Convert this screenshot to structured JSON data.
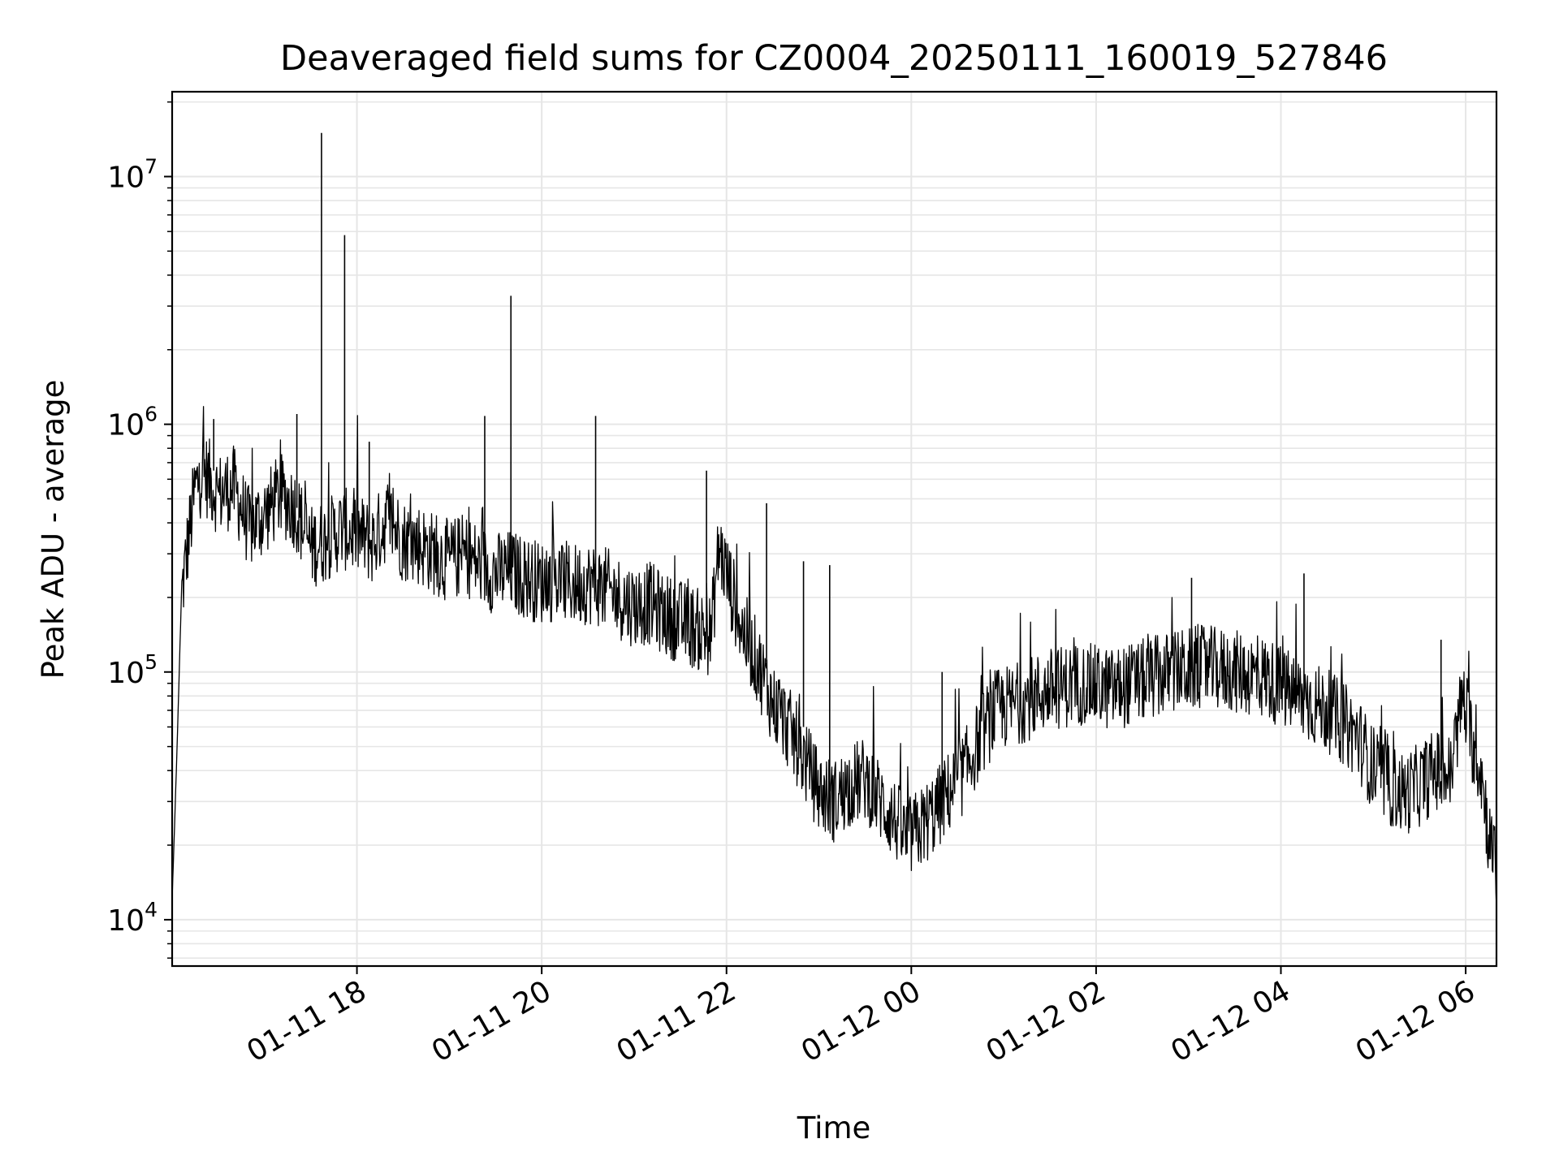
{
  "chart_data": {
    "type": "line",
    "title": "Deaveraged field sums for CZ0004_20250111_160019_527846",
    "xlabel": "Time",
    "ylabel": "Peak ADU - average",
    "yscale": "log",
    "grid": true,
    "legend": "none",
    "line_color": "#000000",
    "grid_color": "#e6e6e6",
    "x_range": [
      "2025-01-11 16:00",
      "2025-01-12 06:20"
    ],
    "ylim": [
      6500,
      22000000
    ],
    "x_ticks": [
      {
        "time": "2025-01-11 18:00",
        "label": "01-11 18"
      },
      {
        "time": "2025-01-11 20:00",
        "label": "01-11 20"
      },
      {
        "time": "2025-01-11 22:00",
        "label": "01-11 22"
      },
      {
        "time": "2025-01-12 00:00",
        "label": "01-12 00"
      },
      {
        "time": "2025-01-12 02:00",
        "label": "01-12 02"
      },
      {
        "time": "2025-01-12 04:00",
        "label": "01-12 04"
      },
      {
        "time": "2025-01-12 06:00",
        "label": "01-12 06"
      }
    ],
    "y_ticks": [
      {
        "value": 10000,
        "base": "10",
        "exp": "4"
      },
      {
        "value": 100000,
        "base": "10",
        "exp": "5"
      },
      {
        "value": 1000000,
        "base": "10",
        "exp": "6"
      },
      {
        "value": 10000000,
        "base": "10",
        "exp": "7"
      }
    ],
    "series": [
      {
        "values": [
          [
            "2025-01-11 16:00",
            12000
          ],
          [
            "2025-01-11 16:03",
            45000
          ],
          [
            "2025-01-11 16:06",
            200000
          ],
          [
            "2025-01-11 16:10",
            320000
          ],
          [
            "2025-01-11 16:15",
            550000
          ],
          [
            "2025-01-11 16:20",
            650000
          ],
          [
            "2025-01-11 16:30",
            520000
          ],
          [
            "2025-01-11 16:40",
            560000
          ],
          [
            "2025-01-11 16:50",
            380000
          ],
          [
            "2025-01-11 17:00",
            430000
          ],
          [
            "2025-01-11 17:10",
            520000
          ],
          [
            "2025-01-11 17:20",
            460000
          ],
          [
            "2025-01-11 17:30",
            320000
          ],
          [
            "2025-01-11 17:40",
            340000
          ],
          [
            "2025-01-11 17:50",
            380000
          ],
          [
            "2025-01-11 18:00",
            360000
          ],
          [
            "2025-01-11 18:10",
            330000
          ],
          [
            "2025-01-11 18:20",
            420000
          ],
          [
            "2025-01-11 18:30",
            340000
          ],
          [
            "2025-01-11 18:40",
            330000
          ],
          [
            "2025-01-11 18:50",
            300000
          ],
          [
            "2025-01-11 19:00",
            280000
          ],
          [
            "2025-01-11 19:10",
            300000
          ],
          [
            "2025-01-11 19:20",
            270000
          ],
          [
            "2025-01-11 19:30",
            250000
          ],
          [
            "2025-01-11 19:40",
            255000
          ],
          [
            "2025-01-11 19:50",
            240000
          ],
          [
            "2025-01-11 20:00",
            230000
          ],
          [
            "2025-01-11 20:10",
            235000
          ],
          [
            "2025-01-11 20:20",
            225000
          ],
          [
            "2025-01-11 20:30",
            230000
          ],
          [
            "2025-01-11 20:40",
            220000
          ],
          [
            "2025-01-11 20:50",
            200000
          ],
          [
            "2025-01-11 21:00",
            185000
          ],
          [
            "2025-01-11 21:10",
            190000
          ],
          [
            "2025-01-11 21:20",
            170000
          ],
          [
            "2025-01-11 21:30",
            160000
          ],
          [
            "2025-01-11 21:40",
            150000
          ],
          [
            "2025-01-11 21:50",
            140000
          ],
          [
            "2025-01-11 21:55",
            320000
          ],
          [
            "2025-01-11 22:00",
            250000
          ],
          [
            "2025-01-11 22:10",
            150000
          ],
          [
            "2025-01-11 22:20",
            110000
          ],
          [
            "2025-01-11 22:30",
            75000
          ],
          [
            "2025-01-11 22:40",
            60000
          ],
          [
            "2025-01-11 22:50",
            45000
          ],
          [
            "2025-01-11 23:00",
            33000
          ],
          [
            "2025-01-11 23:10",
            30000
          ],
          [
            "2025-01-11 23:20",
            35000
          ],
          [
            "2025-01-11 23:30",
            37000
          ],
          [
            "2025-01-11 23:40",
            30000
          ],
          [
            "2025-01-11 23:50",
            25000
          ],
          [
            "2025-01-11 23:57",
            21000
          ],
          [
            "2025-01-12 00:05",
            23000
          ],
          [
            "2025-01-12 00:15",
            27000
          ],
          [
            "2025-01-12 00:25",
            33000
          ],
          [
            "2025-01-12 00:35",
            40000
          ],
          [
            "2025-01-12 00:45",
            55000
          ],
          [
            "2025-01-12 00:55",
            70000
          ],
          [
            "2025-01-12 01:10",
            75000
          ],
          [
            "2025-01-12 01:30",
            85000
          ],
          [
            "2025-01-12 01:50",
            90000
          ],
          [
            "2025-01-12 02:10",
            85000
          ],
          [
            "2025-01-12 02:30",
            92000
          ],
          [
            "2025-01-12 02:50",
            100000
          ],
          [
            "2025-01-12 03:10",
            105000
          ],
          [
            "2025-01-12 03:30",
            100000
          ],
          [
            "2025-01-12 03:50",
            95000
          ],
          [
            "2025-01-12 04:10",
            80000
          ],
          [
            "2025-01-12 04:30",
            70000
          ],
          [
            "2025-01-12 04:50",
            55000
          ],
          [
            "2025-01-12 05:00",
            40000
          ],
          [
            "2025-01-12 05:10",
            35000
          ],
          [
            "2025-01-12 05:20",
            32000
          ],
          [
            "2025-01-12 05:30",
            35000
          ],
          [
            "2025-01-12 05:40",
            40000
          ],
          [
            "2025-01-12 05:50",
            38000
          ],
          [
            "2025-01-12 05:58",
            80000
          ],
          [
            "2025-01-12 06:05",
            50000
          ],
          [
            "2025-01-12 06:10",
            40000
          ],
          [
            "2025-01-12 06:15",
            22000
          ],
          [
            "2025-01-12 06:20",
            15000
          ]
        ]
      }
    ],
    "spikes": [
      [
        "2025-01-11 16:27",
        1050000
      ],
      [
        "2025-01-11 17:21",
        1100000
      ],
      [
        "2025-01-11 17:37",
        15000000
      ],
      [
        "2025-01-11 17:52",
        5800000
      ],
      [
        "2025-01-11 18:08",
        850000
      ],
      [
        "2025-01-11 19:23",
        1080000
      ],
      [
        "2025-01-11 19:40",
        3300000
      ],
      [
        "2025-01-11 20:35",
        1080000
      ],
      [
        "2025-01-11 21:47",
        650000
      ],
      [
        "2025-01-11 22:26",
        480000
      ],
      [
        "2025-01-11 22:50",
        280000
      ],
      [
        "2025-01-11 23:07",
        270000
      ],
      [
        "2025-01-12 00:20",
        100000
      ],
      [
        "2025-01-12 03:02",
        240000
      ],
      [
        "2025-01-12 04:15",
        250000
      ],
      [
        "2025-01-12 05:44",
        135000
      ]
    ]
  }
}
